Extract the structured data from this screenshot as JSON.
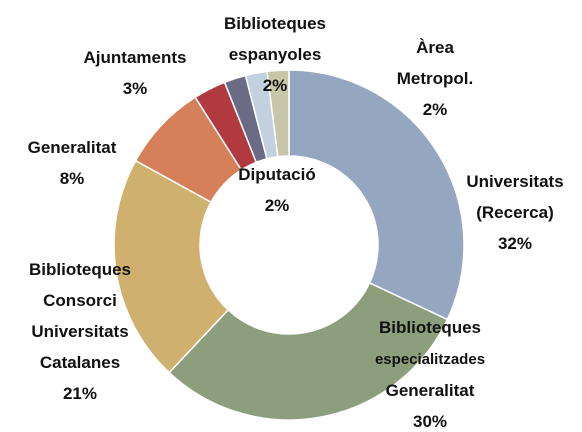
{
  "chart_data": {
    "type": "donut",
    "categories": [
      "Universitats\n(Recerca)",
      "Biblioteques\nespecialitzades\nGeneralitat",
      "Biblioteques\nConsorci\nUniversitats\nCatalanes",
      "Generalitat",
      "Ajuntaments",
      "Diputació",
      "Biblioteques\nespanyoles",
      "Àrea\nMetropol."
    ],
    "values": [
      32,
      30,
      21,
      8,
      3,
      2,
      2,
      2
    ],
    "value_labels": [
      "32%",
      "30%",
      "21%",
      "8%",
      "3%",
      "2%",
      "2%",
      "2%"
    ],
    "colors": [
      "#95a7c0",
      "#8c9e7c",
      "#cfb06f",
      "#d6805b",
      "#b03a40",
      "#6c6b86",
      "#c3d0e0",
      "#c8c6a8"
    ]
  }
}
